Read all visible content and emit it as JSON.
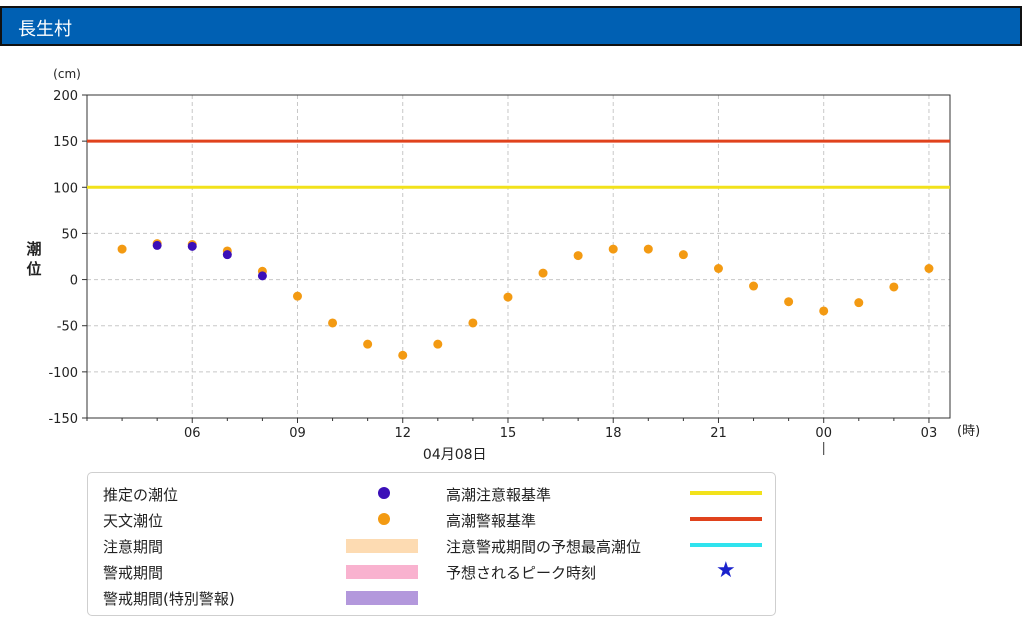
{
  "header": {
    "title": "長生村"
  },
  "chart_data": {
    "type": "scatter",
    "y_unit": "(cm)",
    "ylabel": "潮位",
    "x_unit": "(時)",
    "date_label": "04月08日",
    "ylim": [
      -150,
      200
    ],
    "yticks": [
      200,
      150,
      100,
      50,
      0,
      -50,
      -100,
      -150
    ],
    "x_range_hours": [
      3,
      27.6
    ],
    "xticks": [
      {
        "hour": 6,
        "label": "06"
      },
      {
        "hour": 9,
        "label": "09"
      },
      {
        "hour": 12,
        "label": "12"
      },
      {
        "hour": 15,
        "label": "15"
      },
      {
        "hour": 18,
        "label": "18"
      },
      {
        "hour": 21,
        "label": "21"
      },
      {
        "hour": 24,
        "label": "00"
      },
      {
        "hour": 27,
        "label": "03"
      }
    ],
    "grid": true,
    "thresholds": [
      {
        "name": "高潮注意報基準",
        "value": 100,
        "color": "#f2e21b"
      },
      {
        "name": "高潮警報基準",
        "value": 150,
        "color": "#e0421c"
      }
    ],
    "series": [
      {
        "name": "天文潮位",
        "color": "#f39a12",
        "x": [
          4,
          5,
          6,
          7,
          8,
          9,
          10,
          11,
          12,
          13,
          14,
          15,
          16,
          17,
          18,
          19,
          20,
          21,
          22,
          23,
          24,
          25,
          26,
          27
        ],
        "y": [
          33,
          39,
          38,
          31,
          9,
          -18,
          -47,
          -70,
          -82,
          -70,
          -47,
          -19,
          7,
          26,
          33,
          33,
          27,
          12,
          -7,
          -24,
          -34,
          -25,
          -8,
          12
        ]
      },
      {
        "name": "推定の潮位",
        "color": "#3b0fb8",
        "x": [
          5,
          6,
          7,
          8
        ],
        "y": [
          37,
          36,
          27,
          4
        ]
      }
    ]
  },
  "legend": [
    {
      "label": "推定の潮位",
      "kind": "dot",
      "color": "#3b0fb8"
    },
    {
      "label": "天文潮位",
      "kind": "dot",
      "color": "#f39a12"
    },
    {
      "label": "注意期間",
      "kind": "swatch",
      "color": "#fddbb2"
    },
    {
      "label": "警戒期間",
      "kind": "swatch",
      "color": "#f9b2cf"
    },
    {
      "label": "警戒期間(特別警報)",
      "kind": "swatch",
      "color": "#b398dc"
    },
    {
      "label": "高潮注意報基準",
      "kind": "line",
      "color": "#f2e21b"
    },
    {
      "label": "高潮警報基準",
      "kind": "line",
      "color": "#e0421c"
    },
    {
      "label": "注意警戒期間の予想最高潮位",
      "kind": "line",
      "color": "#2fe3ee"
    },
    {
      "label": "予想されるピーク時刻",
      "kind": "star",
      "color": "#1a22cc"
    }
  ]
}
